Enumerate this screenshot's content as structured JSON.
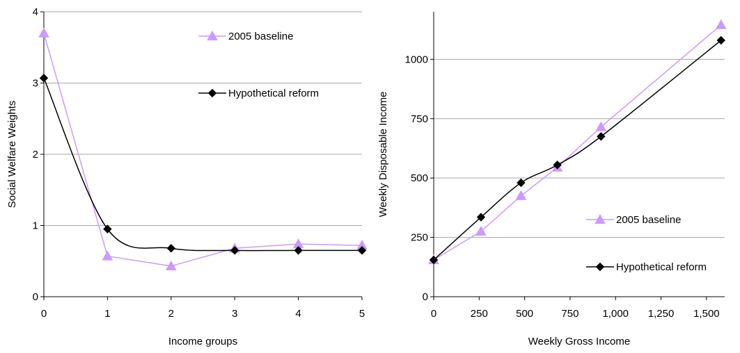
{
  "chart_data": [
    {
      "type": "line",
      "title": "",
      "xlabel": "Income groups",
      "ylabel": "Social Welfare Weights",
      "xlim": [
        0,
        5
      ],
      "ylim": [
        0,
        4
      ],
      "x_ticks": [
        0,
        1,
        2,
        3,
        4,
        5
      ],
      "y_ticks": [
        0,
        1,
        2,
        3,
        4
      ],
      "x_tick_labels": [
        "0",
        "1",
        "2",
        "3",
        "4",
        "5"
      ],
      "y_tick_labels": [
        "0",
        "1",
        "2",
        "3",
        "4"
      ],
      "grid": "horizontal",
      "legend_position": "top-right",
      "series": [
        {
          "name": "2005 baseline",
          "marker": "triangle",
          "color": "#cc99ff",
          "smooth": false,
          "x": [
            0,
            1,
            2,
            3,
            4,
            5
          ],
          "y": [
            3.7,
            0.57,
            0.43,
            0.68,
            0.74,
            0.72
          ]
        },
        {
          "name": "Hypothetical reform",
          "marker": "diamond",
          "color": "#000000",
          "smooth": true,
          "x": [
            0,
            1,
            2,
            3,
            4,
            5
          ],
          "y": [
            3.07,
            0.95,
            0.68,
            0.65,
            0.65,
            0.65
          ]
        }
      ]
    },
    {
      "type": "line",
      "title": "",
      "xlabel": "Weekly Gross Income",
      "ylabel": "Weekly Disposable Income",
      "xlim": [
        0,
        1600
      ],
      "ylim": [
        0,
        1200
      ],
      "x_ticks": [
        0,
        250,
        500,
        750,
        1000,
        1250,
        1500
      ],
      "y_ticks": [
        0,
        250,
        500,
        750,
        1000
      ],
      "x_tick_labels": [
        "0",
        "250",
        "500",
        "750",
        "1,000",
        "1,250",
        "1,500"
      ],
      "y_tick_labels": [
        "0",
        "250",
        "500",
        "750",
        "1000"
      ],
      "grid": "horizontal",
      "legend_position": "bottom-right",
      "series": [
        {
          "name": "2005 baseline",
          "marker": "triangle",
          "color": "#cc99ff",
          "smooth": false,
          "x": [
            0,
            260,
            480,
            680,
            920,
            1580
          ],
          "y": [
            155,
            275,
            425,
            545,
            715,
            1145
          ]
        },
        {
          "name": "Hypothetical reform",
          "marker": "diamond",
          "color": "#000000",
          "smooth": true,
          "x": [
            0,
            260,
            480,
            680,
            920,
            1580
          ],
          "y": [
            155,
            335,
            480,
            555,
            675,
            1080
          ]
        }
      ]
    }
  ]
}
